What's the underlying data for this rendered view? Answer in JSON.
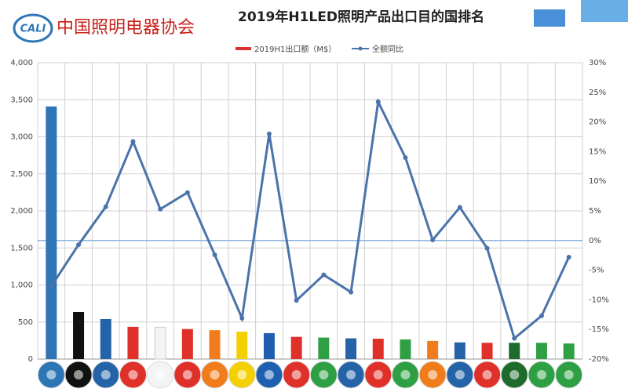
{
  "logo": {
    "mark": "CALI",
    "name": "中国照明电器协会"
  },
  "chart_data": {
    "type": "bar-line",
    "title": "2019年H1LED照明产品出口目的国排名",
    "categories": [
      null,
      null,
      null,
      null,
      null,
      null,
      null,
      null,
      null,
      null,
      null,
      null,
      null,
      null,
      null,
      null,
      null,
      null,
      null,
      null
    ],
    "series": [
      {
        "name": "2019H1出口额（M$）",
        "color": "#d9312b",
        "colors": [
          "#2e75b6",
          "#111111",
          "#2563a8",
          "#e0302a",
          "#f4f4f4",
          "#e0302a",
          "#f07c1c",
          "#f5d000",
          "#1f5fb0",
          "#e0302a",
          "#2ea043",
          "#2563a8",
          "#e0302a",
          "#2ea043",
          "#f07c1c",
          "#2563a8",
          "#e0302a",
          "#1f6b2e",
          "#2ea043",
          "#2ea043"
        ],
        "values": [
          3410,
          635,
          540,
          435,
          430,
          405,
          390,
          370,
          350,
          300,
          290,
          280,
          275,
          265,
          245,
          225,
          220,
          220,
          220,
          210
        ]
      },
      {
        "name": "全额同比",
        "color": "#4a73aa",
        "axis": "y2",
        "values": [
          -7.7,
          -0.7,
          5.7,
          16.7,
          5.3,
          8.1,
          -2.4,
          -13.1,
          18.0,
          -10.1,
          -5.8,
          -8.7,
          23.4,
          14.0,
          0.1,
          5.6,
          -1.3,
          -16.5,
          -12.7,
          -2.8
        ]
      }
    ],
    "ylim": [
      0,
      4000
    ],
    "yticks": [
      0,
      {
        "value": 500,
        "label": "500"
      },
      {
        "value": 1000,
        "label": "1,000"
      },
      {
        "value": 1500,
        "label": "1,500"
      },
      {
        "value": 2000,
        "label": "2,000"
      },
      {
        "value": 2500,
        "label": "2,500"
      },
      {
        "value": 3000,
        "label": "3,000"
      },
      {
        "value": 3500,
        "label": "3,500"
      },
      {
        "value": 4000,
        "label": "4,000"
      }
    ],
    "y2lim": [
      -20,
      30
    ],
    "y2ticks": [
      {
        "value": -20,
        "label": "-20%"
      },
      {
        "value": -15,
        "label": "-15%"
      },
      {
        "value": -10,
        "label": "-10%"
      },
      {
        "value": -5,
        "label": "-5%"
      },
      {
        "value": 0,
        "label": "0%"
      },
      {
        "value": 5,
        "label": "5%"
      },
      {
        "value": 10,
        "label": "10%"
      },
      {
        "value": 15,
        "label": "15%"
      },
      {
        "value": 20,
        "label": "20%"
      },
      {
        "value": 25,
        "label": "25%"
      },
      {
        "value": 30,
        "label": "30%"
      }
    ],
    "grid": true
  }
}
